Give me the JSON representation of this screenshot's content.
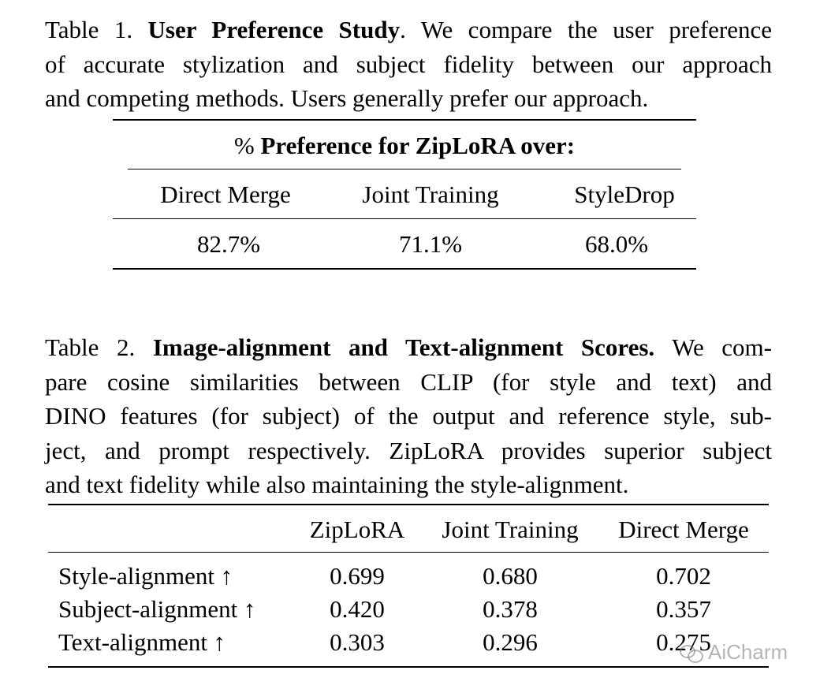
{
  "table1": {
    "caption_prefix": "Table 1.",
    "caption_title": "User Preference Study",
    "caption_lines": [
      ". We compare the user preference",
      "of accurate stylization and subject fidelity between our approach",
      "and competing methods. Users generally prefer our approach."
    ],
    "header_symbol": "%",
    "header_text": "Preference for ZipLoRA over:",
    "columns": [
      "Direct Merge",
      "Joint Training",
      "StyleDrop"
    ],
    "values": [
      "82.7%",
      "71.1%",
      "68.0%"
    ]
  },
  "table2": {
    "caption_prefix": "Table 2.",
    "caption_title": "Image-alignment and Text-alignment Scores.",
    "caption_lines": [
      " We com-",
      "pare cosine similarities between CLIP (for style and text) and",
      "DINO features (for subject) of the output and reference style, sub-",
      "ject, and prompt respectively. ZipLoRA provides superior subject",
      "and text fidelity while also maintaining the style-alignment."
    ],
    "columns": [
      "ZipLoRA",
      "Joint Training",
      "Direct Merge"
    ],
    "rows": [
      {
        "label": "Style-alignment ↑",
        "values": [
          "0.699",
          "0.680",
          "0.702"
        ]
      },
      {
        "label": "Subject-alignment ↑",
        "values": [
          "0.420",
          "0.378",
          "0.357"
        ]
      },
      {
        "label": "Text-alignment ↑",
        "values": [
          "0.303",
          "0.296",
          "0.275"
        ]
      }
    ]
  },
  "watermark": {
    "text": "AiCharm",
    "icon": "wechat-icon"
  }
}
